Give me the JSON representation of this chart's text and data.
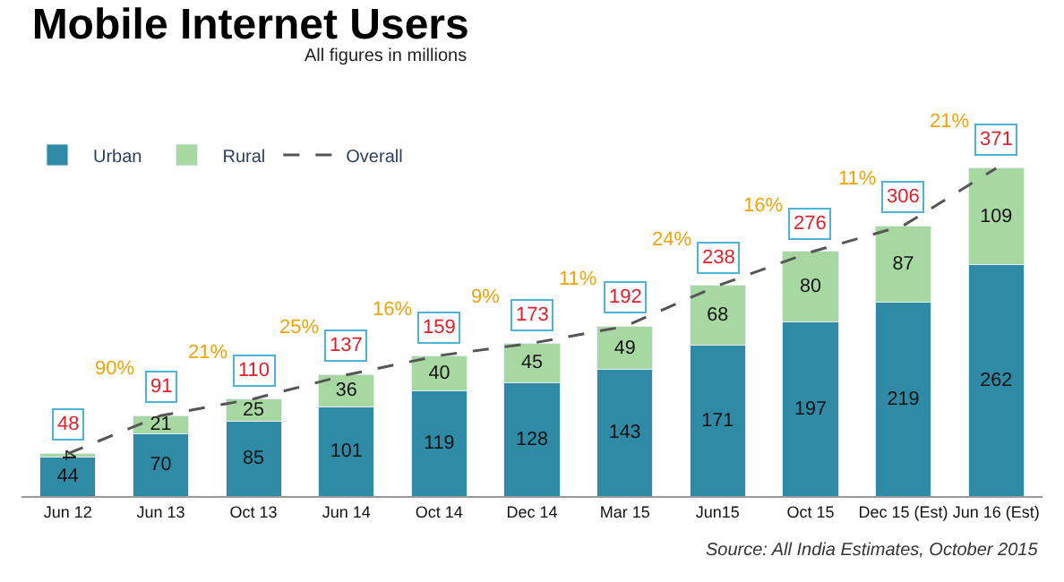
{
  "chart_data": {
    "type": "bar",
    "title": "Mobile Internet Users",
    "subtitle": "All figures in millions",
    "categories": [
      "Jun 12",
      "Jun 13",
      "Oct 13",
      "Jun 14",
      "Oct 14",
      "Dec 14",
      "Mar 15",
      "Jun15",
      "Oct 15",
      "Dec 15 (Est)",
      "Jun 16 (Est)"
    ],
    "stacked": true,
    "data_labels": true,
    "legend": "top left",
    "series": [
      {
        "name": "Urban",
        "color": "#2e8aa5",
        "values": [
          44,
          70,
          85,
          101,
          119,
          128,
          143,
          171,
          197,
          219,
          262
        ]
      },
      {
        "name": "Rural",
        "color": "#a8d8a2",
        "values": [
          4,
          21,
          25,
          36,
          40,
          45,
          49,
          68,
          80,
          87,
          109
        ]
      },
      {
        "name": "Overall",
        "type": "line",
        "color": "#555555",
        "line_style": "dashed",
        "marker": "none",
        "values": [
          48,
          91,
          110,
          137,
          159,
          173,
          192,
          238,
          276,
          306,
          371
        ]
      }
    ],
    "annotations": [
      {
        "text": "90%",
        "x": "Jun 13",
        "y": 91
      },
      {
        "text": "21%",
        "x": "Oct 13",
        "y": 110
      },
      {
        "text": "25%",
        "x": "Jun 14",
        "y": 137
      },
      {
        "text": "16%",
        "x": "Oct 14",
        "y": 159
      },
      {
        "text": "9%",
        "x": "Dec 14",
        "y": 173
      },
      {
        "text": "11%",
        "x": "Mar 15",
        "y": 192
      },
      {
        "text": "24%",
        "x": "Jun15",
        "y": 238
      },
      {
        "text": "16%",
        "x": "Oct 15",
        "y": 276
      },
      {
        "text": "11%",
        "x": "Dec 15 (Est)",
        "y": 306
      },
      {
        "text": "21%",
        "x": "Jun 16 (Est)",
        "y": 371
      },
      "Source: All India Estimates, October 2015"
    ]
  }
}
